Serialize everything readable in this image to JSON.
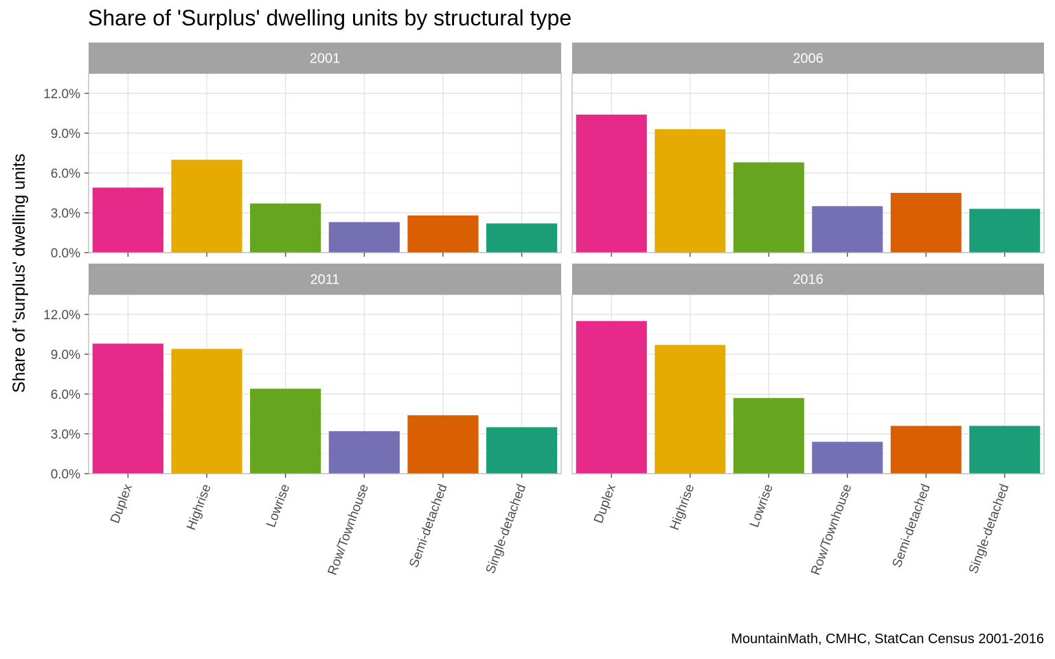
{
  "chart_data": {
    "type": "bar",
    "title": "Share of 'Surplus' dwelling units by structural type",
    "ylabel": "Share of 'surplus' dwelling units",
    "xlabel": "",
    "caption": "MountainMath, CMHC, StatCan Census 2001-2016",
    "categories": [
      "Duplex",
      "Highrise",
      "Lowrise",
      "Row/Townhouse",
      "Semi-detached",
      "Single-detached"
    ],
    "colors": [
      "#e7298a",
      "#e6ab02",
      "#66a61e",
      "#7570b3",
      "#d95f02",
      "#1b9e77"
    ],
    "ylim": [
      0,
      0.135
    ],
    "y_ticks": [
      0,
      0.03,
      0.06,
      0.09,
      0.12
    ],
    "y_tick_labels": [
      "0.0%",
      "3.0%",
      "6.0%",
      "9.0%",
      "12.0%"
    ],
    "grid": true,
    "legend": "none",
    "panels": [
      {
        "label": "2001",
        "values": [
          0.049,
          0.07,
          0.037,
          0.023,
          0.028,
          0.022
        ]
      },
      {
        "label": "2006",
        "values": [
          0.104,
          0.093,
          0.068,
          0.035,
          0.045,
          0.033
        ]
      },
      {
        "label": "2011",
        "values": [
          0.098,
          0.094,
          0.064,
          0.032,
          0.044,
          0.035
        ]
      },
      {
        "label": "2016",
        "values": [
          0.115,
          0.097,
          0.057,
          0.024,
          0.036,
          0.036
        ]
      }
    ]
  }
}
